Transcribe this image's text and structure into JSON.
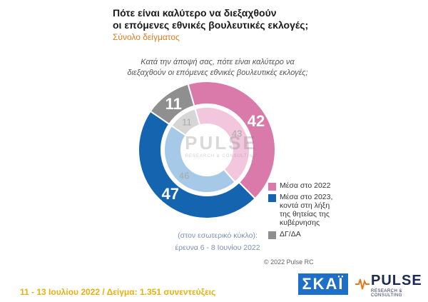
{
  "title": {
    "line1": "Πότε είναι καλύτερο να διεξαχθούν",
    "line2": "οι επόμενες εθνικές βουλευτικές εκλογές;",
    "subtitle": "Σύνολο δείγματος"
  },
  "question": {
    "line1": "Κατά την άποψή σας, πότε είναι καλύτερο να",
    "line2": "διεξαχθούν οι επόμενες εθνικές βουλευτικές εκλογές;"
  },
  "chart_data": {
    "type": "pie",
    "variant": "nested-donut",
    "categories": [
      "Μέσα στο 2022",
      "Μέσα στο 2023, κοντά στη λήξη της θητείας της κυβέρνησης",
      "ΔΓ/ΔΑ"
    ],
    "series": [
      {
        "values": [
          42,
          47,
          11
        ],
        "colors": [
          "#d97aaa",
          "#1464b0",
          "#8f8f8f"
        ]
      },
      {
        "values": [
          43,
          46,
          11
        ],
        "colors": [
          "#f2c6dc",
          "#a5c9e6",
          "#d6d6d6"
        ]
      }
    ],
    "legend_position": "right"
  },
  "legend": {
    "items": [
      {
        "lines": [
          "Μέσα στο 2022"
        ],
        "color": "#d97aaa"
      },
      {
        "lines": [
          "Μέσα στο 2023,",
          "κοντά στη λήξη",
          "της θητείας της",
          "κυβέρνησης"
        ],
        "color": "#1464b0"
      },
      {
        "lines": [
          "ΔΓ/ΔΑ"
        ],
        "color": "#8f8f8f"
      }
    ]
  },
  "inner_note": {
    "line1": "(στον εσωτερικό κύκλο):",
    "line2": "έρευνα 6 - 8 Ιουνίου 2022"
  },
  "watermark": {
    "name": "PULSE",
    "sub": "RESEARCH & CONSULTING"
  },
  "copyright": "© 2022 Pulse RC",
  "footer": "11 - 13 Ιουλίου  2022  /  Δείγμα:  1.351 συνεντεύξεις",
  "logos": {
    "skai": "ΣΚΑΪ",
    "pulse_name": "PULSE",
    "pulse_sub": "RESEARCH & CONSULTING"
  }
}
